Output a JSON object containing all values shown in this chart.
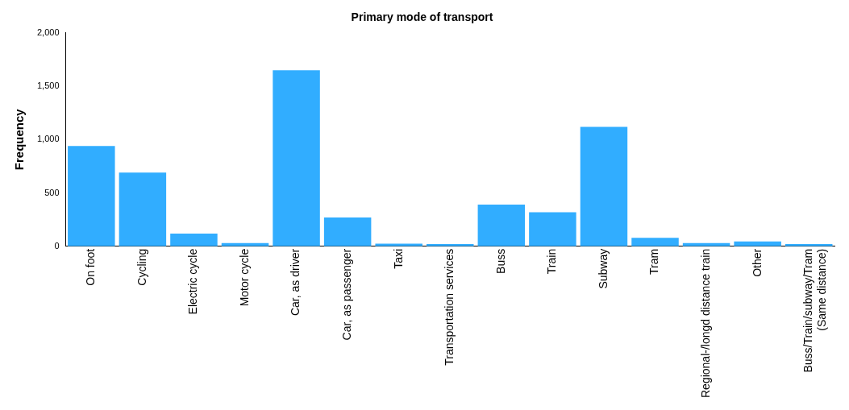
{
  "chart_data": {
    "type": "bar",
    "title": "Primary mode of transport",
    "ylabel": "Frequency",
    "categories": [
      "On foot",
      "Cycling",
      "Electric cycle",
      "Motor cycle",
      "Car, as driver",
      "Car, as passenger",
      "Taxi",
      "Transportation services",
      "Buss",
      "Train",
      "Subway",
      "Tram",
      "Regional-/longd distance train",
      "Other",
      "Buss/Train/subway/Tram (Same distance)"
    ],
    "values": [
      940,
      690,
      120,
      30,
      1650,
      270,
      25,
      20,
      390,
      320,
      1120,
      80,
      30,
      45,
      20
    ],
    "color": "#31adff",
    "ylim": [
      0,
      2000
    ],
    "yticks": [
      0,
      500,
      {
        "value": 1000,
        "label": "1,000"
      },
      {
        "value": 1500,
        "label": "1,500"
      },
      {
        "value": 2000,
        "label": "2,000"
      }
    ],
    "grid": false
  }
}
